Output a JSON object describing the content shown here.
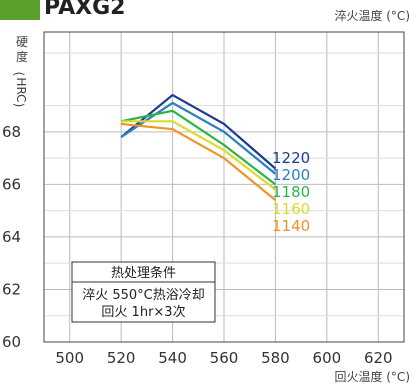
{
  "header": {
    "title": "PAXG2",
    "logo_color": "#5aa02c"
  },
  "chart_data": {
    "type": "line",
    "title": "",
    "top_label": "淬火温度 (°C)",
    "xlabel": "回火温度 (°C)",
    "ylabel": "硬度 (HRC)",
    "ylabel_chars": [
      "硬",
      "度",
      "(",
      "HRC",
      ")"
    ],
    "xlim": [
      490,
      630
    ],
    "ylim": [
      60,
      71.8
    ],
    "x_ticks": [
      "500",
      "520",
      "540",
      "560",
      "580",
      "600",
      "620"
    ],
    "y_ticks": [
      "60",
      "62",
      "64",
      "66",
      "68"
    ],
    "grid": true,
    "legend_position": "right of lines",
    "x": [
      520,
      540,
      560,
      580
    ],
    "series": [
      {
        "name": "1220",
        "color": "#1f3b8f",
        "values": [
          67.8,
          69.4,
          68.3,
          66.6
        ]
      },
      {
        "name": "1200",
        "color": "#2a7fc0",
        "values": [
          67.8,
          69.1,
          68.0,
          66.4
        ]
      },
      {
        "name": "1180",
        "color": "#2eb34a",
        "values": [
          68.4,
          68.8,
          67.5,
          66.0
        ]
      },
      {
        "name": "1160",
        "color": "#d8dc2a",
        "values": [
          68.4,
          68.4,
          67.3,
          65.8
        ]
      },
      {
        "name": "1140",
        "color": "#f0922a",
        "values": [
          68.3,
          68.1,
          67.0,
          65.4
        ]
      }
    ],
    "annotation_box": {
      "title": "热处理条件",
      "lines": [
        "淬火 550°C热浴冷却",
        "回火 1hr×3次"
      ]
    }
  }
}
